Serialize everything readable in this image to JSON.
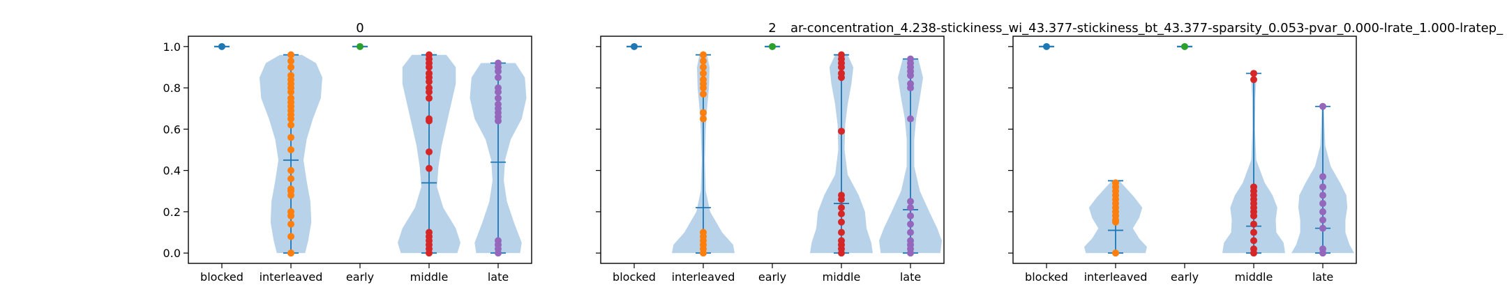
{
  "figure": {
    "suptitle": "ar-concentration_4.238-stickiness_wi_43.377-stickiness_bt_43.377-sparsity_0.053-pvar_0.000-lrate_1.000-lratep_",
    "colors": {
      "body": "#a6c8e4",
      "lines": "#1f77b4",
      "blocked": "#1f77b4",
      "interleaved": "#ff7f0e",
      "early": "#2ca02c",
      "middle": "#d62728",
      "late": "#9467bd"
    }
  },
  "chart_data": [
    {
      "type": "violin",
      "title": "0",
      "categories": [
        "blocked",
        "interleaved",
        "early",
        "middle",
        "late"
      ],
      "yticks": [
        "0.0",
        "0.2",
        "0.4",
        "0.6",
        "0.8",
        "1.0"
      ],
      "ylim": [
        -0.05,
        1.05
      ],
      "series": [
        {
          "category": "blocked",
          "min": 1.0,
          "max": 1.0,
          "mean": 1.0,
          "points": [
            1.0
          ]
        },
        {
          "category": "interleaved",
          "min": 0.0,
          "max": 0.96,
          "mean": 0.45,
          "points": [
            0.0,
            0.08,
            0.14,
            0.18,
            0.2,
            0.28,
            0.3,
            0.31,
            0.36,
            0.4,
            0.5,
            0.56,
            0.62,
            0.65,
            0.67,
            0.69,
            0.71,
            0.73,
            0.75,
            0.78,
            0.8,
            0.82,
            0.84,
            0.86,
            0.9,
            0.93,
            0.96
          ]
        },
        {
          "category": "early",
          "min": 1.0,
          "max": 1.0,
          "mean": 1.0,
          "points": [
            1.0
          ]
        },
        {
          "category": "middle",
          "min": 0.0,
          "max": 0.96,
          "mean": 0.34,
          "points": [
            0.0,
            0.02,
            0.04,
            0.06,
            0.08,
            0.1,
            0.41,
            0.49,
            0.64,
            0.65,
            0.75,
            0.78,
            0.8,
            0.83,
            0.85,
            0.87,
            0.9,
            0.92,
            0.94,
            0.96
          ]
        },
        {
          "category": "late",
          "min": 0.0,
          "max": 0.92,
          "mean": 0.44,
          "points": [
            0.0,
            0.02,
            0.04,
            0.06,
            0.64,
            0.66,
            0.68,
            0.7,
            0.72,
            0.75,
            0.78,
            0.8,
            0.85,
            0.88,
            0.9,
            0.92
          ]
        }
      ],
      "density": {
        "interleaved": [
          [
            0.0,
            0.45
          ],
          [
            0.06,
            0.55
          ],
          [
            0.15,
            0.65
          ],
          [
            0.25,
            0.62
          ],
          [
            0.35,
            0.5
          ],
          [
            0.45,
            0.4
          ],
          [
            0.55,
            0.5
          ],
          [
            0.65,
            0.7
          ],
          [
            0.75,
            0.95
          ],
          [
            0.85,
            1.0
          ],
          [
            0.92,
            0.8
          ],
          [
            0.96,
            0.35
          ]
        ],
        "middle": [
          [
            0.0,
            0.9
          ],
          [
            0.05,
            1.0
          ],
          [
            0.12,
            0.85
          ],
          [
            0.22,
            0.45
          ],
          [
            0.32,
            0.25
          ],
          [
            0.42,
            0.3
          ],
          [
            0.52,
            0.4
          ],
          [
            0.62,
            0.55
          ],
          [
            0.72,
            0.7
          ],
          [
            0.82,
            0.85
          ],
          [
            0.9,
            0.85
          ],
          [
            0.96,
            0.55
          ]
        ],
        "late": [
          [
            0.0,
            0.7
          ],
          [
            0.05,
            0.75
          ],
          [
            0.15,
            0.5
          ],
          [
            0.25,
            0.28
          ],
          [
            0.35,
            0.18
          ],
          [
            0.45,
            0.22
          ],
          [
            0.55,
            0.4
          ],
          [
            0.65,
            0.75
          ],
          [
            0.75,
            0.9
          ],
          [
            0.85,
            0.85
          ],
          [
            0.92,
            0.55
          ]
        ]
      }
    },
    {
      "type": "violin",
      "title": "2",
      "categories": [
        "blocked",
        "interleaved",
        "early",
        "middle",
        "late"
      ],
      "yticks": [
        "0.0",
        "0.2",
        "0.4",
        "0.6",
        "0.8",
        "1.0"
      ],
      "ylim": [
        -0.05,
        1.05
      ],
      "series": [
        {
          "category": "blocked",
          "min": 1.0,
          "max": 1.0,
          "mean": 1.0,
          "points": [
            1.0
          ]
        },
        {
          "category": "interleaved",
          "min": 0.0,
          "max": 0.96,
          "mean": 0.22,
          "points": [
            0.0,
            0.02,
            0.04,
            0.06,
            0.08,
            0.1,
            0.65,
            0.68,
            0.77,
            0.8,
            0.82,
            0.84,
            0.87,
            0.9,
            0.93,
            0.96
          ]
        },
        {
          "category": "early",
          "min": 1.0,
          "max": 1.0,
          "mean": 1.0,
          "points": [
            1.0
          ]
        },
        {
          "category": "middle",
          "min": 0.0,
          "max": 0.96,
          "mean": 0.24,
          "points": [
            0.0,
            0.02,
            0.04,
            0.06,
            0.1,
            0.15,
            0.19,
            0.22,
            0.26,
            0.28,
            0.59,
            0.85,
            0.87,
            0.9,
            0.92,
            0.94,
            0.96
          ]
        },
        {
          "category": "late",
          "min": 0.0,
          "max": 0.94,
          "mean": 0.21,
          "points": [
            0.0,
            0.02,
            0.04,
            0.06,
            0.1,
            0.14,
            0.18,
            0.22,
            0.25,
            0.65,
            0.8,
            0.82,
            0.86,
            0.88,
            0.9,
            0.92,
            0.94
          ]
        }
      ],
      "density": {
        "interleaved": [
          [
            0.0,
            1.0
          ],
          [
            0.04,
            0.95
          ],
          [
            0.1,
            0.6
          ],
          [
            0.2,
            0.22
          ],
          [
            0.3,
            0.08
          ],
          [
            0.45,
            0.05
          ],
          [
            0.6,
            0.08
          ],
          [
            0.7,
            0.12
          ],
          [
            0.8,
            0.18
          ],
          [
            0.9,
            0.2
          ],
          [
            0.96,
            0.12
          ]
        ],
        "middle": [
          [
            0.0,
            1.0
          ],
          [
            0.05,
            0.95
          ],
          [
            0.12,
            0.8
          ],
          [
            0.2,
            0.75
          ],
          [
            0.28,
            0.55
          ],
          [
            0.38,
            0.2
          ],
          [
            0.5,
            0.1
          ],
          [
            0.62,
            0.12
          ],
          [
            0.72,
            0.2
          ],
          [
            0.82,
            0.32
          ],
          [
            0.9,
            0.38
          ],
          [
            0.96,
            0.2
          ]
        ],
        "late": [
          [
            0.0,
            0.95
          ],
          [
            0.06,
            1.0
          ],
          [
            0.12,
            0.85
          ],
          [
            0.2,
            0.6
          ],
          [
            0.3,
            0.3
          ],
          [
            0.42,
            0.12
          ],
          [
            0.55,
            0.12
          ],
          [
            0.65,
            0.18
          ],
          [
            0.75,
            0.3
          ],
          [
            0.85,
            0.4
          ],
          [
            0.94,
            0.25
          ]
        ]
      }
    },
    {
      "type": "violin",
      "title": "",
      "categories": [
        "blocked",
        "interleaved",
        "early",
        "middle",
        "late"
      ],
      "yticks": [
        "0.0",
        "0.2",
        "0.4",
        "0.6",
        "0.8",
        "1.0"
      ],
      "ylim": [
        -0.05,
        1.05
      ],
      "series": [
        {
          "category": "blocked",
          "min": 1.0,
          "max": 1.0,
          "mean": 1.0,
          "points": [
            1.0
          ]
        },
        {
          "category": "interleaved",
          "min": 0.0,
          "max": 0.35,
          "mean": 0.11,
          "points": [
            0.0,
            0.15,
            0.16,
            0.18,
            0.2,
            0.22,
            0.24,
            0.26,
            0.28,
            0.3,
            0.32,
            0.34
          ]
        },
        {
          "category": "early",
          "min": 1.0,
          "max": 1.0,
          "mean": 1.0,
          "points": [
            1.0
          ]
        },
        {
          "category": "middle",
          "min": 0.0,
          "max": 0.87,
          "mean": 0.13,
          "points": [
            0.0,
            0.02,
            0.06,
            0.1,
            0.14,
            0.18,
            0.2,
            0.22,
            0.24,
            0.26,
            0.28,
            0.3,
            0.32,
            0.84,
            0.87
          ]
        },
        {
          "category": "late",
          "min": 0.0,
          "max": 0.71,
          "mean": 0.12,
          "points": [
            0.0,
            0.02,
            0.12,
            0.16,
            0.2,
            0.24,
            0.28,
            0.32,
            0.37,
            0.71
          ]
        }
      ],
      "density": {
        "interleaved": [
          [
            0.0,
            0.95
          ],
          [
            0.03,
            1.0
          ],
          [
            0.07,
            0.75
          ],
          [
            0.12,
            0.55
          ],
          [
            0.17,
            0.75
          ],
          [
            0.22,
            0.85
          ],
          [
            0.27,
            0.6
          ],
          [
            0.32,
            0.3
          ],
          [
            0.35,
            0.12
          ]
        ],
        "middle": [
          [
            0.0,
            1.0
          ],
          [
            0.05,
            0.95
          ],
          [
            0.1,
            0.72
          ],
          [
            0.16,
            0.7
          ],
          [
            0.22,
            0.75
          ],
          [
            0.28,
            0.6
          ],
          [
            0.34,
            0.35
          ],
          [
            0.45,
            0.08
          ],
          [
            0.6,
            0.04
          ],
          [
            0.75,
            0.05
          ],
          [
            0.84,
            0.08
          ],
          [
            0.87,
            0.04
          ]
        ],
        "late": [
          [
            0.0,
            1.0
          ],
          [
            0.04,
            0.85
          ],
          [
            0.1,
            0.72
          ],
          [
            0.16,
            0.72
          ],
          [
            0.22,
            0.78
          ],
          [
            0.28,
            0.75
          ],
          [
            0.34,
            0.55
          ],
          [
            0.42,
            0.25
          ],
          [
            0.52,
            0.08
          ],
          [
            0.62,
            0.05
          ],
          [
            0.71,
            0.03
          ]
        ]
      }
    }
  ]
}
